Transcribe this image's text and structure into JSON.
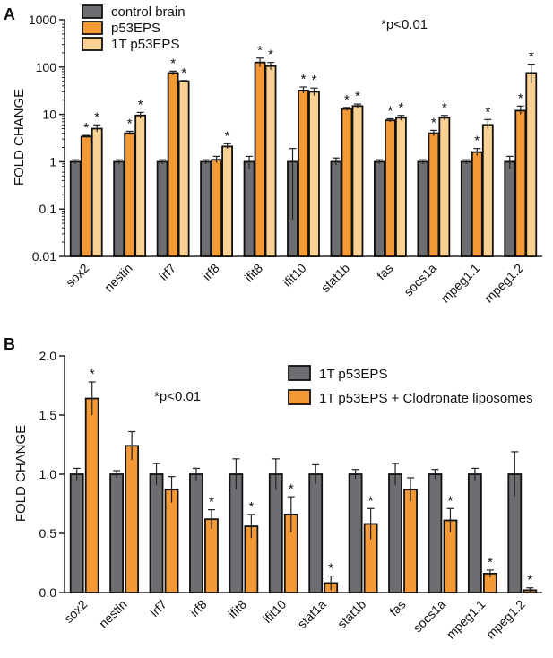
{
  "chart_data": [
    {
      "panel": "A",
      "type": "bar",
      "scale": "log",
      "ylabel": "FOLD CHANGE",
      "ylim": [
        0.01,
        1000
      ],
      "yticks": [
        0.01,
        0.1,
        1,
        10,
        100,
        1000
      ],
      "ytick_labels": [
        "0.01",
        "0.1",
        "1",
        "10",
        "100",
        "1000"
      ],
      "annotation": "*p<0.01",
      "legend_position": "top-left",
      "categories": [
        "sox2",
        "nestin",
        "irf7",
        "irf8",
        "ifit8",
        "ifit10",
        "stat1b",
        "fas",
        "socs1a",
        "mpeg1.1",
        "mpeg1.2"
      ],
      "series": [
        {
          "name": "control brain",
          "color": "#6d6e71",
          "values": [
            1,
            1,
            1,
            1,
            1,
            1,
            1,
            1,
            1,
            1,
            1
          ],
          "errors": [
            1.1,
            1.1,
            1.1,
            1.1,
            1.3,
            1.9,
            1.2,
            1.1,
            1.1,
            1.1,
            1.3
          ],
          "lower_errors": [
            0.9,
            0.9,
            0.9,
            0.9,
            0.7,
            0.06,
            0.85,
            0.9,
            0.9,
            0.9,
            0.7
          ],
          "significant": [
            false,
            false,
            false,
            false,
            false,
            false,
            false,
            false,
            false,
            false,
            false
          ]
        },
        {
          "name": "p53EPS",
          "color": "#f39a37",
          "values": [
            3.4,
            4,
            75,
            1.1,
            125,
            32,
            13,
            7.5,
            4,
            1.6,
            12
          ],
          "errors": [
            3.6,
            4.4,
            82,
            1.3,
            155,
            38,
            14,
            8.1,
            4.6,
            1.9,
            15
          ],
          "lower_errors": [
            3.2,
            3.7,
            68,
            0.95,
            100,
            28,
            12,
            6.9,
            3.5,
            1.35,
            10
          ],
          "significant": [
            true,
            true,
            true,
            false,
            true,
            true,
            true,
            true,
            true,
            true,
            true
          ]
        },
        {
          "name": "1T p53EPS",
          "color": "#fbd193",
          "values": [
            5,
            9.5,
            50,
            2.1,
            105,
            30,
            15,
            8.5,
            8.5,
            6,
            75
          ],
          "errors": [
            6,
            11,
            52,
            2.4,
            125,
            36,
            16.5,
            9.5,
            9.5,
            7.8,
            115
          ],
          "lower_errors": [
            4.3,
            8.2,
            48,
            1.9,
            88,
            25,
            13.5,
            7.5,
            7.6,
            4.8,
            45
          ],
          "significant": [
            true,
            true,
            true,
            true,
            true,
            true,
            true,
            true,
            true,
            true,
            true
          ]
        }
      ]
    },
    {
      "panel": "B",
      "type": "bar",
      "scale": "linear",
      "ylabel": "FOLD CHANGE",
      "ylim": [
        0,
        2.0
      ],
      "yticks": [
        0,
        0.5,
        1.0,
        1.5,
        2.0
      ],
      "ytick_labels": [
        "0.0",
        "0.5",
        "1.0",
        "1.5",
        "2.0"
      ],
      "annotation": "*p<0.01",
      "legend_position": "top-right",
      "categories": [
        "sox2",
        "nestin",
        "irf7",
        "irf8",
        "ifit8",
        "ifit10",
        "stat1a",
        "stat1b",
        "fas",
        "socs1a",
        "mpeg1.1",
        "mpeg1.2"
      ],
      "series": [
        {
          "name": "1T p53EPS",
          "color": "#6d6e71",
          "values": [
            1.0,
            1.0,
            1.0,
            1.0,
            1.0,
            1.0,
            1.0,
            1.0,
            1.0,
            1.0,
            1.0,
            1.0
          ],
          "errors": [
            0.05,
            0.03,
            0.09,
            0.05,
            0.13,
            0.13,
            0.08,
            0.04,
            0.09,
            0.04,
            0.05,
            0.19
          ],
          "significant": [
            false,
            false,
            false,
            false,
            false,
            false,
            false,
            false,
            false,
            false,
            false,
            false
          ]
        },
        {
          "name": "1T p53EPS + Clodronate liposomes",
          "color": "#f39a37",
          "values": [
            1.64,
            1.24,
            0.87,
            0.62,
            0.56,
            0.66,
            0.08,
            0.58,
            0.87,
            0.61,
            0.16,
            0.02
          ],
          "errors": [
            0.14,
            0.12,
            0.11,
            0.08,
            0.1,
            0.15,
            0.06,
            0.13,
            0.1,
            0.1,
            0.03,
            0.02
          ],
          "significant": [
            true,
            false,
            false,
            true,
            true,
            true,
            true,
            true,
            false,
            true,
            true,
            true
          ]
        }
      ]
    }
  ]
}
